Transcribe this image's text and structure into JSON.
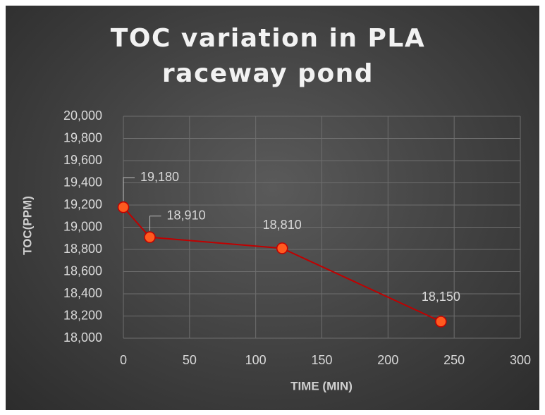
{
  "chart_data": {
    "type": "line",
    "title": "TOC variation in PLA raceway pond",
    "x_label": "TIME (MIN)",
    "y_label": "TOC(PPM)",
    "x": [
      0,
      20,
      120,
      240
    ],
    "series": [
      {
        "name": "TOC",
        "color": "#c00000",
        "marker_color": "#ff5a1f",
        "values": [
          19180,
          18910,
          18810,
          18150
        ],
        "value_labels": [
          "19,180",
          "18,910",
          "18,810",
          "18,150"
        ]
      }
    ],
    "xlim": [
      0,
      300
    ],
    "xticks": [
      0,
      50,
      100,
      150,
      200,
      250,
      300
    ],
    "ylim": [
      18000,
      20000
    ],
    "yticks": [
      {
        "value": 18000,
        "label": "18,000"
      },
      {
        "value": 18200,
        "label": "18,200"
      },
      {
        "value": 18400,
        "label": "18,400"
      },
      {
        "value": 18600,
        "label": "18,600"
      },
      {
        "value": 18800,
        "label": "18,800"
      },
      {
        "value": 19000,
        "label": "19,000"
      },
      {
        "value": 19200,
        "label": "19,200"
      },
      {
        "value": 19400,
        "label": "19,400"
      },
      {
        "value": 19600,
        "label": "19,600"
      },
      {
        "value": 19800,
        "label": "19,800"
      },
      {
        "value": 20000,
        "label": "20,000"
      }
    ],
    "grid": true
  }
}
